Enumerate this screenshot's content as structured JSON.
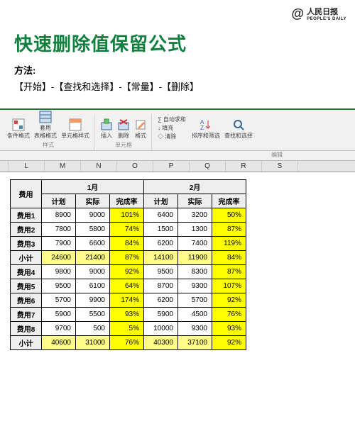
{
  "logo": {
    "at": "@",
    "name": "人民日报",
    "sub": "PEOPLE'S DAILY"
  },
  "header": {
    "title": "快速删除值保留公式",
    "method_label": "方法:",
    "steps": "【开始】-【查找和选择】-【常量】-【删除】"
  },
  "ribbon": {
    "g1": {
      "i1": "条件格式",
      "i2": "套用\n表格格式",
      "i3": "单元格样式",
      "label": "样式"
    },
    "g2": {
      "i1": "插入",
      "i2": "删除",
      "i3": "格式",
      "label": "单元格"
    },
    "g3": {
      "r1": "∑ 自动求和",
      "r2": "↓ 填充",
      "r3": "◇ 清除",
      "label": "编辑",
      "i1": "排序和筛选",
      "i2": "查找和选择"
    }
  },
  "cols": {
    "c1": "L",
    "c2": "M",
    "c3": "N",
    "c4": "O",
    "c5": "P",
    "c6": "Q",
    "c7": "R",
    "c8": "S"
  },
  "table": {
    "h_fee": "费用",
    "h_m1": "1月",
    "h_m2": "2月",
    "h_plan": "计划",
    "h_act": "实际",
    "h_rate": "完成率",
    "rows": [
      {
        "label": "费用1",
        "p1": "8900",
        "a1": "9000",
        "r1": "101%",
        "p2": "6400",
        "a2": "3200",
        "r2": "50%",
        "sub": false
      },
      {
        "label": "费用2",
        "p1": "7800",
        "a1": "5800",
        "r1": "74%",
        "p2": "1500",
        "a2": "1300",
        "r2": "87%",
        "sub": false
      },
      {
        "label": "费用3",
        "p1": "7900",
        "a1": "6600",
        "r1": "84%",
        "p2": "6200",
        "a2": "7400",
        "r2": "119%",
        "sub": false
      },
      {
        "label": "小计",
        "p1": "24600",
        "a1": "21400",
        "r1": "87%",
        "p2": "14100",
        "a2": "11900",
        "r2": "84%",
        "sub": true
      },
      {
        "label": "费用4",
        "p1": "9800",
        "a1": "9000",
        "r1": "92%",
        "p2": "9500",
        "a2": "8300",
        "r2": "87%",
        "sub": false
      },
      {
        "label": "费用5",
        "p1": "9500",
        "a1": "6100",
        "r1": "64%",
        "p2": "8700",
        "a2": "9300",
        "r2": "107%",
        "sub": false
      },
      {
        "label": "费用6",
        "p1": "5700",
        "a1": "9900",
        "r1": "174%",
        "p2": "6200",
        "a2": "5700",
        "r2": "92%",
        "sub": false
      },
      {
        "label": "费用7",
        "p1": "5900",
        "a1": "5500",
        "r1": "93%",
        "p2": "5900",
        "a2": "4500",
        "r2": "76%",
        "sub": false
      },
      {
        "label": "费用8",
        "p1": "9700",
        "a1": "500",
        "r1": "5%",
        "p2": "10000",
        "a2": "9300",
        "r2": "93%",
        "sub": false
      },
      {
        "label": "小计",
        "p1": "40600",
        "a1": "31000",
        "r1": "76%",
        "p2": "40300",
        "a2": "37100",
        "r2": "92%",
        "sub": true
      }
    ]
  }
}
